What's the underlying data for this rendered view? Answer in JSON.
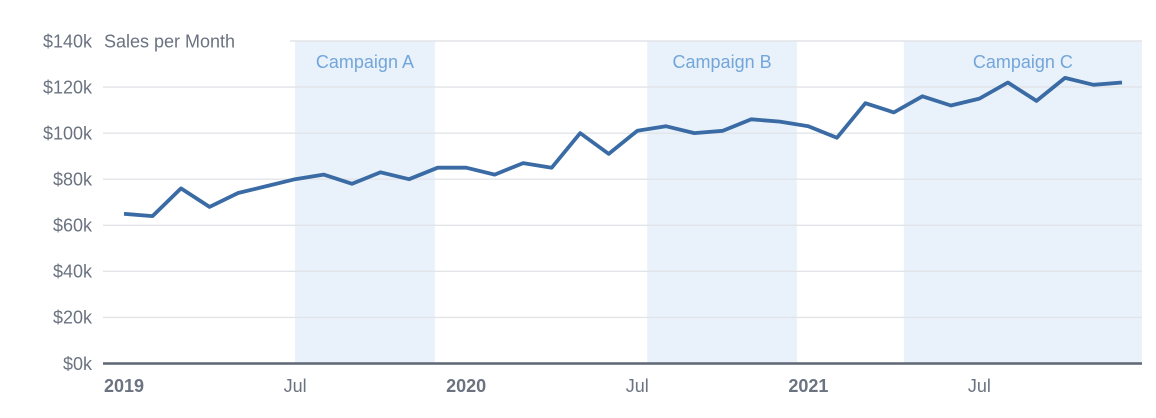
{
  "chart_data": {
    "type": "line",
    "title": "Sales per Month",
    "ylabel": "",
    "xlabel": "",
    "ylim": [
      0,
      140
    ],
    "grid": "horizontal",
    "legend": "none",
    "x_unit": "month",
    "months": [
      "2019-01",
      "2019-02",
      "2019-03",
      "2019-04",
      "2019-05",
      "2019-06",
      "2019-07",
      "2019-08",
      "2019-09",
      "2019-10",
      "2019-11",
      "2019-12",
      "2020-01",
      "2020-02",
      "2020-03",
      "2020-04",
      "2020-05",
      "2020-06",
      "2020-07",
      "2020-08",
      "2020-09",
      "2020-10",
      "2020-11",
      "2020-12",
      "2021-01",
      "2021-02",
      "2021-03",
      "2021-04",
      "2021-05",
      "2021-06",
      "2021-07",
      "2021-08",
      "2021-09",
      "2021-10",
      "2021-11",
      "2021-12"
    ],
    "series": [
      {
        "name": "Sales ($k)",
        "values": [
          65,
          64,
          76,
          68,
          74,
          77,
          80,
          82,
          78,
          83,
          80,
          85,
          85,
          82,
          87,
          85,
          100,
          91,
          101,
          103,
          100,
          101,
          106,
          105,
          103,
          98,
          113,
          109,
          116,
          112,
          115,
          122,
          114,
          124,
          121,
          122
        ]
      }
    ],
    "y_ticks": [
      {
        "value": 0,
        "label": "$0k"
      },
      {
        "value": 20,
        "label": "$20k"
      },
      {
        "value": 40,
        "label": "$40k"
      },
      {
        "value": 60,
        "label": "$60k"
      },
      {
        "value": 80,
        "label": "$80k"
      },
      {
        "value": 100,
        "label": "$100k"
      },
      {
        "value": 120,
        "label": "$120k"
      },
      {
        "value": 140,
        "label": "$140k"
      }
    ],
    "x_ticks": [
      {
        "label": "2019",
        "month": 0,
        "bold": true
      },
      {
        "label": "Jul",
        "month": 6,
        "bold": false
      },
      {
        "label": "2020",
        "month": 12,
        "bold": true
      },
      {
        "label": "Jul",
        "month": 18,
        "bold": false
      },
      {
        "label": "2021",
        "month": 24,
        "bold": true
      },
      {
        "label": "Jul",
        "month": 30,
        "bold": false
      }
    ],
    "regions": [
      {
        "label": "Campaign A",
        "start_month": 6.0,
        "end_month": 10.9
      },
      {
        "label": "Campaign B",
        "start_month": 18.35,
        "end_month": 23.6
      },
      {
        "label": "Campaign C",
        "start_month": 27.35,
        "end_month": 35.7
      }
    ],
    "colors": {
      "line": "#3a6ba4",
      "region_fill": "#e9f1fa",
      "region_label": "#72a6da",
      "axis_text": "#6b7380",
      "grid_line": "#e2e4e8",
      "axis_line": "#5f6774",
      "background": "#ffffff"
    }
  }
}
